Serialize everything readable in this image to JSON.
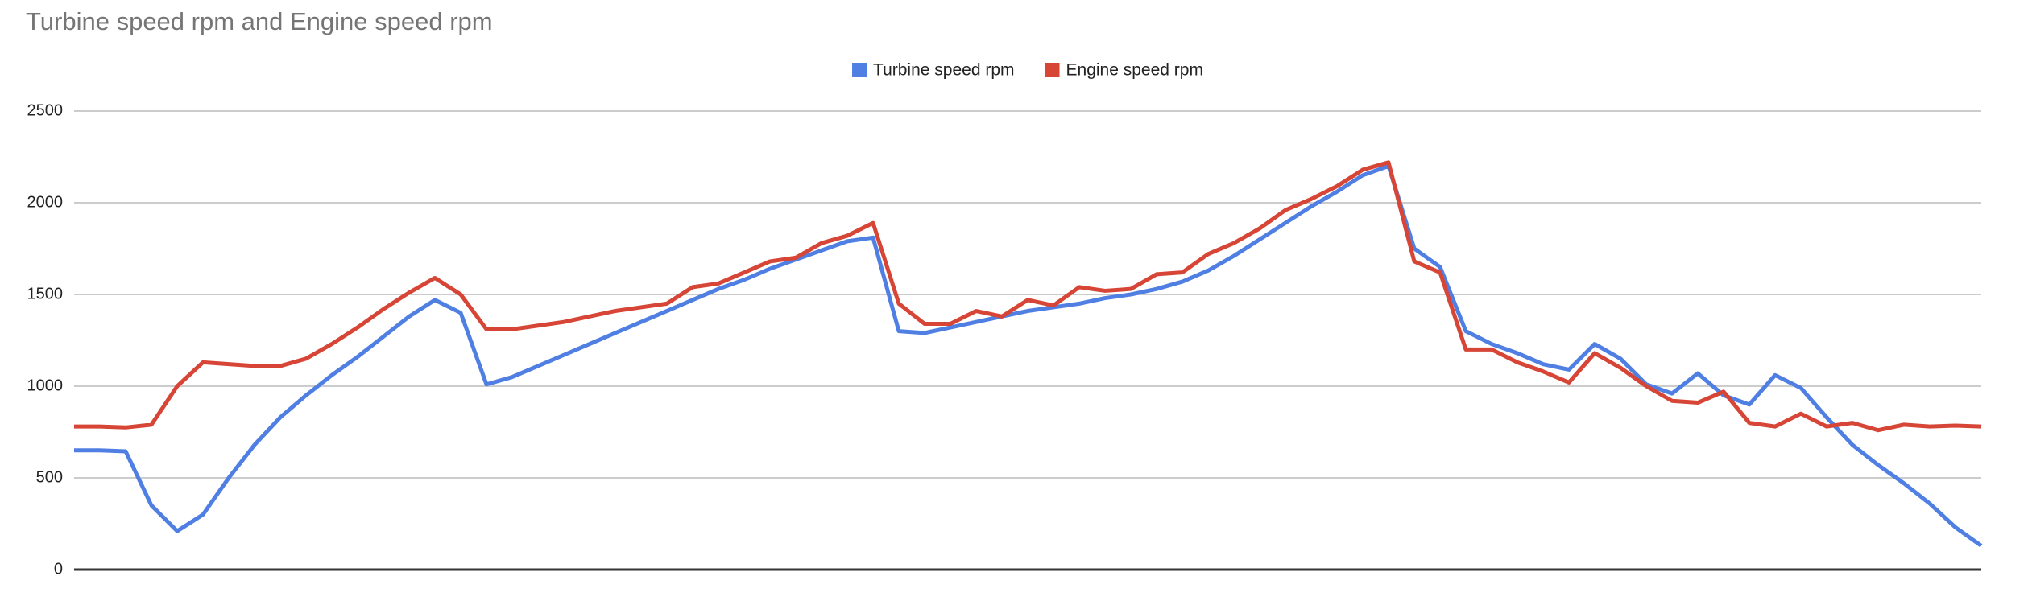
{
  "chart_data": {
    "type": "line",
    "title": "Turbine speed rpm and Engine speed rpm",
    "ylim": [
      0,
      2500
    ],
    "yticks": [
      0,
      500,
      1000,
      1500,
      2000,
      2500
    ],
    "grid": true,
    "legend": "top",
    "series": [
      {
        "name": "Turbine speed rpm",
        "color": "#4f7fe2",
        "values": [
          650,
          650,
          645,
          350,
          210,
          300,
          500,
          680,
          830,
          950,
          1060,
          1160,
          1270,
          1380,
          1470,
          1400,
          1010,
          1050,
          1110,
          1170,
          1230,
          1290,
          1350,
          1410,
          1470,
          1530,
          1580,
          1640,
          1690,
          1740,
          1790,
          1810,
          1300,
          1290,
          1320,
          1350,
          1380,
          1410,
          1430,
          1450,
          1480,
          1500,
          1530,
          1570,
          1630,
          1710,
          1800,
          1890,
          1980,
          2060,
          2150,
          2200,
          1750,
          1650,
          1300,
          1230,
          1180,
          1120,
          1090,
          1230,
          1150,
          1010,
          960,
          1070,
          950,
          900,
          1060,
          990,
          830,
          680,
          570,
          470,
          360,
          230,
          130
        ]
      },
      {
        "name": "Engine speed rpm",
        "color": "#d64535",
        "values": [
          780,
          780,
          775,
          790,
          1000,
          1130,
          1120,
          1110,
          1110,
          1150,
          1230,
          1320,
          1420,
          1510,
          1590,
          1500,
          1310,
          1310,
          1330,
          1350,
          1380,
          1410,
          1430,
          1450,
          1540,
          1560,
          1620,
          1680,
          1700,
          1780,
          1820,
          1890,
          1450,
          1340,
          1340,
          1410,
          1380,
          1470,
          1440,
          1540,
          1520,
          1530,
          1610,
          1620,
          1720,
          1780,
          1860,
          1960,
          2020,
          2090,
          2180,
          2220,
          1680,
          1620,
          1200,
          1200,
          1130,
          1080,
          1020,
          1180,
          1100,
          1000,
          920,
          910,
          970,
          800,
          780,
          850,
          780,
          800,
          760,
          790,
          780,
          785,
          780
        ]
      }
    ]
  }
}
